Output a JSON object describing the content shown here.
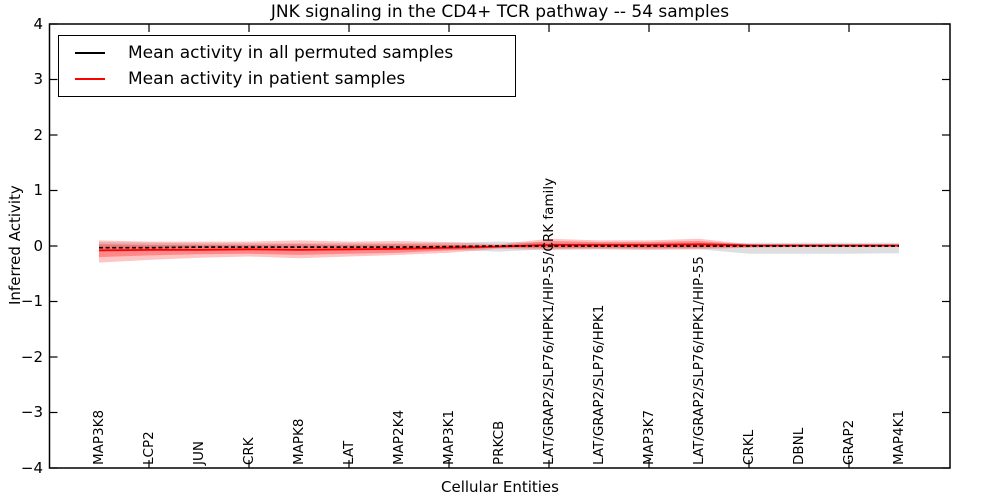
{
  "title": "JNK signaling in the CD4+ TCR pathway -- 54 samples",
  "axes": {
    "xlabel": "Cellular Entities",
    "ylabel": "Inferred Activity",
    "ytick_labels": [
      "4",
      "3",
      "2",
      "1",
      "0",
      "−1",
      "−2",
      "−3",
      "−4"
    ],
    "ytick_values": [
      4,
      3,
      2,
      1,
      0,
      -1,
      -2,
      -3,
      -4
    ]
  },
  "legend": {
    "items": [
      {
        "label": "Mean activity in all permuted samples",
        "color": "#000000"
      },
      {
        "label": "Mean activity in patient samples",
        "color": "#ff0000"
      }
    ]
  },
  "colors": {
    "patient_line": "#ff0000",
    "permuted_line": "#000000",
    "patient_band": "#ff2a2a",
    "permuted_band": "#8a8a8a"
  },
  "chart_data": {
    "type": "line",
    "title": "JNK signaling in the CD4+ TCR pathway -- 54 samples",
    "xlabel": "Cellular Entities",
    "ylabel": "Inferred Activity",
    "ylim": [
      -4,
      4
    ],
    "xlim_index": [
      -1,
      17
    ],
    "grid": false,
    "legend_position": "upper left",
    "categories": [
      "MAP3K8",
      "LCP2",
      "JUN",
      "CRK",
      "MAPK8",
      "LAT",
      "MAP2K4",
      "MAP3K1",
      "PRKCB",
      "LAT/GRAP2/SLP76/HPK1/HIP-55/CRK family",
      "LAT/GRAP2/SLP76/HPK1",
      "MAP3K7",
      "LAT/GRAP2/SLP76/HPK1/HIP-55",
      "CRKL",
      "DBNL",
      "GRAP2",
      "MAP4K1"
    ],
    "series": [
      {
        "name": "Mean activity in all permuted samples",
        "color": "#000000",
        "style": "dashed",
        "values": [
          -0.03,
          -0.03,
          -0.02,
          -0.02,
          -0.02,
          -0.02,
          -0.02,
          -0.01,
          0.0,
          0.0,
          0.0,
          0.0,
          0.0,
          0.0,
          0.0,
          0.0,
          0.0
        ]
      },
      {
        "name": "Mean activity in patient samples",
        "color": "#ff0000",
        "style": "solid",
        "values": [
          -0.08,
          -0.07,
          -0.07,
          -0.06,
          -0.07,
          -0.06,
          -0.05,
          -0.03,
          -0.01,
          0.02,
          0.02,
          0.02,
          0.03,
          0.01,
          0.01,
          0.01,
          0.01
        ]
      }
    ],
    "bands": [
      {
        "name": "permuted-sample-range",
        "color": "#8a8a8a",
        "opacity": 0.28,
        "upper": [
          0.07,
          0.06,
          0.05,
          0.05,
          0.05,
          0.05,
          0.05,
          0.06,
          0.08,
          0.05,
          0.05,
          0.05,
          0.05,
          0.06,
          0.06,
          0.06,
          0.06
        ],
        "lower": [
          -0.1,
          -0.09,
          -0.08,
          -0.08,
          -0.08,
          -0.08,
          -0.07,
          -0.07,
          -0.1,
          -0.06,
          -0.06,
          -0.06,
          -0.06,
          -0.14,
          -0.14,
          -0.14,
          -0.13
        ]
      },
      {
        "name": "patient-range-outer",
        "color": "#ff2a2a",
        "opacity": 0.28,
        "upper": [
          0.1,
          0.08,
          0.08,
          0.08,
          0.1,
          0.08,
          0.09,
          0.07,
          0.03,
          0.13,
          0.1,
          0.1,
          0.13,
          0.03,
          0.02,
          0.02,
          0.02
        ],
        "lower": [
          -0.3,
          -0.25,
          -0.21,
          -0.19,
          -0.22,
          -0.19,
          -0.16,
          -0.12,
          -0.05,
          -0.07,
          -0.06,
          -0.07,
          -0.06,
          -0.03,
          -0.02,
          -0.02,
          -0.02
        ]
      },
      {
        "name": "patient-range-inner",
        "color": "#ff2a2a",
        "opacity": 0.38,
        "upper": [
          0.03,
          0.02,
          0.02,
          0.02,
          0.03,
          0.02,
          0.03,
          0.02,
          0.01,
          0.09,
          0.07,
          0.07,
          0.09,
          0.02,
          0.015,
          0.015,
          0.015
        ],
        "lower": [
          -0.2,
          -0.17,
          -0.15,
          -0.14,
          -0.16,
          -0.14,
          -0.12,
          -0.08,
          -0.03,
          -0.04,
          -0.03,
          -0.04,
          -0.03,
          -0.02,
          -0.015,
          -0.015,
          -0.015
        ]
      }
    ]
  }
}
